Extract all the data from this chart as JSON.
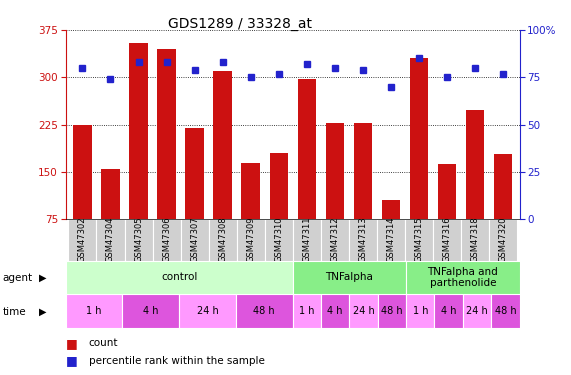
{
  "title": "GDS1289 / 33328_at",
  "samples": [
    "GSM47302",
    "GSM47304",
    "GSM47305",
    "GSM47306",
    "GSM47307",
    "GSM47308",
    "GSM47309",
    "GSM47310",
    "GSM47311",
    "GSM47312",
    "GSM47313",
    "GSM47314",
    "GSM47315",
    "GSM47316",
    "GSM47318",
    "GSM47320"
  ],
  "counts": [
    225,
    155,
    355,
    345,
    220,
    310,
    165,
    180,
    297,
    228,
    228,
    105,
    330,
    162,
    248,
    178
  ],
  "percentiles": [
    80,
    74,
    83,
    83,
    79,
    83,
    75,
    77,
    82,
    80,
    79,
    70,
    85,
    75,
    80,
    77
  ],
  "left_yticks": [
    75,
    150,
    225,
    300,
    375
  ],
  "right_yticks": [
    0,
    25,
    50,
    75,
    100
  ],
  "ylim_left": [
    75,
    375
  ],
  "ylim_right": [
    0,
    100
  ],
  "bar_color": "#cc1111",
  "dot_color": "#2222cc",
  "agent_groups": [
    {
      "label": "control",
      "start": 0,
      "end": 8,
      "color": "#ccffcc"
    },
    {
      "label": "TNFalpha",
      "start": 8,
      "end": 12,
      "color": "#88ee88"
    },
    {
      "label": "TNFalpha and\nparthenolide",
      "start": 12,
      "end": 16,
      "color": "#88ee88"
    }
  ],
  "time_groups": [
    {
      "label": "1 h",
      "start": 0,
      "end": 2,
      "color": "#ff99ff"
    },
    {
      "label": "4 h",
      "start": 2,
      "end": 4,
      "color": "#dd55dd"
    },
    {
      "label": "24 h",
      "start": 4,
      "end": 6,
      "color": "#ff99ff"
    },
    {
      "label": "48 h",
      "start": 6,
      "end": 8,
      "color": "#dd55dd"
    },
    {
      "label": "1 h",
      "start": 8,
      "end": 9,
      "color": "#ff99ff"
    },
    {
      "label": "4 h",
      "start": 9,
      "end": 10,
      "color": "#dd55dd"
    },
    {
      "label": "24 h",
      "start": 10,
      "end": 11,
      "color": "#ff99ff"
    },
    {
      "label": "48 h",
      "start": 11,
      "end": 12,
      "color": "#dd55dd"
    },
    {
      "label": "1 h",
      "start": 12,
      "end": 13,
      "color": "#ff99ff"
    },
    {
      "label": "4 h",
      "start": 13,
      "end": 14,
      "color": "#dd55dd"
    },
    {
      "label": "24 h",
      "start": 14,
      "end": 15,
      "color": "#ff99ff"
    },
    {
      "label": "48 h",
      "start": 15,
      "end": 16,
      "color": "#dd55dd"
    }
  ],
  "legend_count_color": "#cc1111",
  "legend_dot_color": "#2222cc",
  "background_color": "#ffffff"
}
